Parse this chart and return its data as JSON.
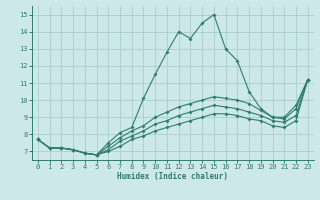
{
  "xlabel": "Humidex (Indice chaleur)",
  "x_values": [
    0,
    1,
    2,
    3,
    4,
    5,
    6,
    7,
    8,
    9,
    10,
    11,
    12,
    13,
    14,
    15,
    16,
    17,
    18,
    19,
    20,
    21,
    22,
    23
  ],
  "line1": [
    7.7,
    7.2,
    7.2,
    7.1,
    6.9,
    6.8,
    7.5,
    8.1,
    8.4,
    10.1,
    11.5,
    12.8,
    14.0,
    13.6,
    14.5,
    15.0,
    13.0,
    12.3,
    10.5,
    9.5,
    9.0,
    9.0,
    9.7,
    11.2
  ],
  "line2": [
    7.7,
    7.2,
    7.2,
    7.1,
    6.9,
    6.8,
    7.3,
    7.8,
    8.2,
    8.5,
    9.0,
    9.3,
    9.6,
    9.8,
    10.0,
    10.2,
    10.1,
    10.0,
    9.8,
    9.4,
    9.0,
    8.9,
    9.5,
    11.2
  ],
  "line3": [
    7.7,
    7.2,
    7.2,
    7.1,
    6.9,
    6.8,
    7.1,
    7.6,
    7.9,
    8.2,
    8.6,
    8.8,
    9.1,
    9.3,
    9.5,
    9.7,
    9.6,
    9.5,
    9.3,
    9.1,
    8.8,
    8.7,
    9.1,
    11.2
  ],
  "line4": [
    7.7,
    7.2,
    7.2,
    7.1,
    6.9,
    6.8,
    7.0,
    7.3,
    7.7,
    7.9,
    8.2,
    8.4,
    8.6,
    8.8,
    9.0,
    9.2,
    9.2,
    9.1,
    8.9,
    8.8,
    8.5,
    8.4,
    8.8,
    11.2
  ],
  "line_color": "#2e7d6e",
  "bg_color": "#cce8e8",
  "grid_color": "#aacece",
  "ylim": [
    6.5,
    15.5
  ],
  "yticks": [
    7,
    8,
    9,
    10,
    11,
    12,
    13,
    14,
    15
  ],
  "xticks": [
    0,
    1,
    2,
    3,
    4,
    5,
    6,
    7,
    8,
    9,
    10,
    11,
    12,
    13,
    14,
    15,
    16,
    17,
    18,
    19,
    20,
    21,
    22,
    23
  ]
}
